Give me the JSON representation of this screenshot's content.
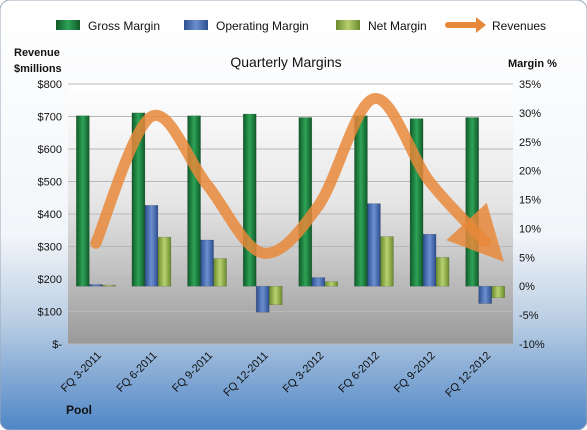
{
  "chart_data": {
    "type": "bar",
    "title": "Quarterly Margins",
    "left_axis_title": [
      "Revenue",
      "$millions"
    ],
    "right_axis_title": "Margin %",
    "footer_label": "Pool",
    "categories": [
      "FQ 3-2011",
      "FQ 6-2011",
      "FQ 9-2011",
      "FQ 12-2011",
      "FQ 3-2012",
      "FQ 6-2012",
      "FQ 9-2012",
      "FQ 12-2012"
    ],
    "left_axis": {
      "min": 0,
      "max": 800,
      "step": 100,
      "tick_labels": [
        "$-",
        "$100",
        "$200",
        "$300",
        "$400",
        "$500",
        "$600",
        "$700",
        "$800"
      ]
    },
    "right_axis": {
      "min": -10,
      "max": 35,
      "step": 5,
      "tick_labels": [
        "-10%",
        "-5%",
        "0%",
        "5%",
        "10%",
        "15%",
        "20%",
        "25%",
        "30%",
        "35%"
      ]
    },
    "series": [
      {
        "name": "Gross Margin",
        "axis": "right",
        "color": "#1f7a3c",
        "values": [
          29.5,
          30.0,
          29.5,
          29.8,
          29.2,
          29.5,
          29.0,
          29.2
        ]
      },
      {
        "name": "Operating Margin",
        "axis": "right",
        "color": "#4a6fb5",
        "values": [
          0.3,
          14.0,
          8.0,
          -4.5,
          1.5,
          14.3,
          9.0,
          -3.0
        ]
      },
      {
        "name": "Net Margin",
        "axis": "right",
        "color": "#8fae4a",
        "values": [
          0.2,
          8.5,
          4.8,
          -3.2,
          0.8,
          8.6,
          5.0,
          -2.0
        ]
      },
      {
        "name": "Revenues",
        "axis": "left",
        "type": "line",
        "color": "#e8883a",
        "values": [
          310,
          700,
          490,
          280,
          425,
          755,
          500,
          315
        ]
      }
    ],
    "legend_position": "top",
    "grid": true
  }
}
